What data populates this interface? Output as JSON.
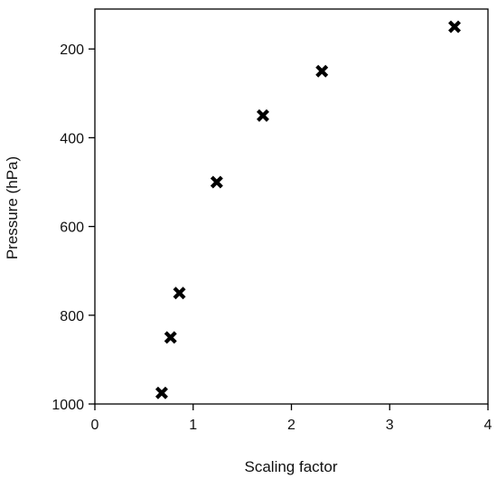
{
  "chart_data": {
    "type": "scatter",
    "title": "",
    "xlabel": "Scaling factor",
    "ylabel": "Pressure (hPa)",
    "xlim": [
      0,
      4
    ],
    "ylim": [
      1000,
      110
    ],
    "y_inverted": true,
    "grid": false,
    "marker": "x-cross",
    "marker_color": "#000000",
    "x_ticks": [
      0,
      1,
      2,
      3,
      4
    ],
    "x_tick_labels": [
      "0",
      "1",
      "2",
      "3",
      "4"
    ],
    "y_ticks": [
      200,
      400,
      600,
      800,
      1000
    ],
    "y_tick_labels": [
      "200",
      "400",
      "600",
      "800",
      "1000"
    ],
    "series": [
      {
        "points": [
          {
            "x": 0.68,
            "y": 975
          },
          {
            "x": 0.77,
            "y": 850
          },
          {
            "x": 0.86,
            "y": 750
          },
          {
            "x": 1.24,
            "y": 500
          },
          {
            "x": 1.71,
            "y": 350
          },
          {
            "x": 2.31,
            "y": 250
          },
          {
            "x": 3.66,
            "y": 150
          }
        ]
      }
    ]
  }
}
